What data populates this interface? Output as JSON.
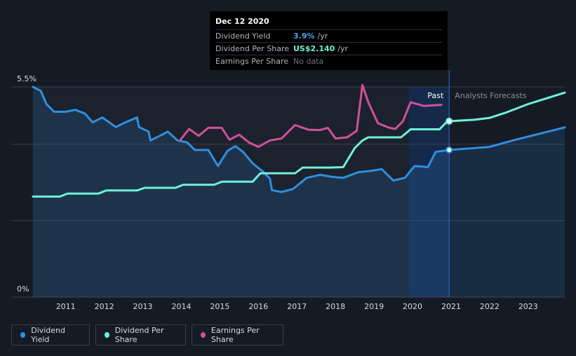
{
  "chart_data": {
    "type": "line",
    "y_ticks": [
      "5.5%",
      "0%"
    ],
    "x_ticks": [
      "2011",
      "2012",
      "2013",
      "2014",
      "2015",
      "2016",
      "2017",
      "2018",
      "2019",
      "2020",
      "2021",
      "2022",
      "2023"
    ],
    "region_labels": {
      "past": "Past",
      "forecast": "Analysts Forecasts"
    },
    "xlim": [
      2010.15,
      2023.95
    ],
    "ylim_percent": [
      0,
      5.5
    ],
    "series": [
      {
        "name": "Dividend Yield",
        "color": "#2f8fe0",
        "axis": "percent",
        "points": [
          [
            2010.15,
            5.5
          ],
          [
            2010.35,
            5.4
          ],
          [
            2010.5,
            5.05
          ],
          [
            2010.7,
            4.85
          ],
          [
            2011.0,
            4.85
          ],
          [
            2011.25,
            4.9
          ],
          [
            2011.5,
            4.8
          ],
          [
            2011.7,
            4.57
          ],
          [
            2011.95,
            4.7
          ],
          [
            2012.3,
            4.45
          ],
          [
            2012.5,
            4.55
          ],
          [
            2012.85,
            4.7
          ],
          [
            2012.9,
            4.45
          ],
          [
            2013.15,
            4.33
          ],
          [
            2013.2,
            4.1
          ],
          [
            2013.5,
            4.25
          ],
          [
            2013.65,
            4.33
          ],
          [
            2013.9,
            4.1
          ],
          [
            2014.15,
            4.05
          ],
          [
            2014.35,
            3.85
          ],
          [
            2014.7,
            3.85
          ],
          [
            2014.95,
            3.43
          ],
          [
            2015.2,
            3.83
          ],
          [
            2015.4,
            3.95
          ],
          [
            2015.6,
            3.8
          ],
          [
            2015.85,
            3.5
          ],
          [
            2016.1,
            3.3
          ],
          [
            2016.3,
            3.1
          ],
          [
            2016.35,
            2.8
          ],
          [
            2016.6,
            2.75
          ],
          [
            2016.9,
            2.83
          ],
          [
            2017.25,
            3.12
          ],
          [
            2017.6,
            3.2
          ],
          [
            2017.9,
            3.15
          ],
          [
            2018.2,
            3.12
          ],
          [
            2018.6,
            3.27
          ],
          [
            2018.9,
            3.3
          ],
          [
            2019.2,
            3.35
          ],
          [
            2019.5,
            3.05
          ],
          [
            2019.8,
            3.12
          ],
          [
            2020.05,
            3.43
          ],
          [
            2020.4,
            3.4
          ],
          [
            2020.6,
            3.8
          ],
          [
            2020.95,
            3.85
          ],
          [
            2022.0,
            3.93
          ],
          [
            2022.6,
            4.1
          ],
          [
            2023.95,
            4.44
          ]
        ]
      },
      {
        "name": "Dividend Per Share",
        "color": "#6ff0d8",
        "axis": "percent",
        "points": [
          [
            2010.15,
            2.63
          ],
          [
            2010.85,
            2.63
          ],
          [
            2011.05,
            2.71
          ],
          [
            2011.85,
            2.71
          ],
          [
            2012.05,
            2.79
          ],
          [
            2012.85,
            2.79
          ],
          [
            2013.05,
            2.86
          ],
          [
            2013.85,
            2.86
          ],
          [
            2014.05,
            2.94
          ],
          [
            2014.85,
            2.94
          ],
          [
            2015.05,
            3.02
          ],
          [
            2015.85,
            3.02
          ],
          [
            2016.05,
            3.24
          ],
          [
            2016.95,
            3.24
          ],
          [
            2017.15,
            3.39
          ],
          [
            2017.85,
            3.39
          ],
          [
            2018.2,
            3.4
          ],
          [
            2018.5,
            3.9
          ],
          [
            2018.7,
            4.1
          ],
          [
            2018.85,
            4.18
          ],
          [
            2019.7,
            4.18
          ],
          [
            2019.95,
            4.39
          ],
          [
            2020.7,
            4.39
          ],
          [
            2020.9,
            4.6
          ],
          [
            2021.6,
            4.64
          ],
          [
            2022.0,
            4.69
          ],
          [
            2022.4,
            4.82
          ],
          [
            2023.0,
            5.05
          ],
          [
            2023.95,
            5.35
          ]
        ]
      },
      {
        "name": "Earnings Per Share",
        "color": "#d0509a",
        "axis": "percent",
        "points": [
          [
            2013.98,
            4.12
          ],
          [
            2014.2,
            4.4
          ],
          [
            2014.45,
            4.22
          ],
          [
            2014.7,
            4.43
          ],
          [
            2015.05,
            4.43
          ],
          [
            2015.25,
            4.12
          ],
          [
            2015.5,
            4.25
          ],
          [
            2015.75,
            4.05
          ],
          [
            2016.0,
            3.93
          ],
          [
            2016.3,
            4.1
          ],
          [
            2016.6,
            4.15
          ],
          [
            2016.95,
            4.5
          ],
          [
            2017.3,
            4.38
          ],
          [
            2017.6,
            4.37
          ],
          [
            2017.8,
            4.43
          ],
          [
            2018.0,
            4.15
          ],
          [
            2018.3,
            4.18
          ],
          [
            2018.55,
            4.35
          ],
          [
            2018.7,
            5.55
          ],
          [
            2018.85,
            5.1
          ],
          [
            2019.1,
            4.55
          ],
          [
            2019.4,
            4.43
          ],
          [
            2019.55,
            4.4
          ],
          [
            2019.75,
            4.6
          ],
          [
            2019.95,
            5.1
          ],
          [
            2020.3,
            5.0
          ],
          [
            2020.55,
            5.02
          ],
          [
            2020.75,
            5.03
          ]
        ]
      }
    ],
    "highlight_x": 2020.95
  },
  "tooltip": {
    "date": "Dec 12 2020",
    "rows": [
      {
        "label": "Dividend Yield",
        "value": "3.9%",
        "unit": "/yr"
      },
      {
        "label": "Dividend Per Share",
        "value": "US$2.140",
        "unit": "/yr"
      },
      {
        "label": "Earnings Per Share",
        "value": "No data",
        "unit": ""
      }
    ]
  },
  "legend": [
    {
      "label": "Dividend Yield",
      "color": "#2f8fe0"
    },
    {
      "label": "Dividend Per Share",
      "color": "#6ff0d8"
    },
    {
      "label": "Earnings Per Share",
      "color": "#d0509a"
    }
  ]
}
